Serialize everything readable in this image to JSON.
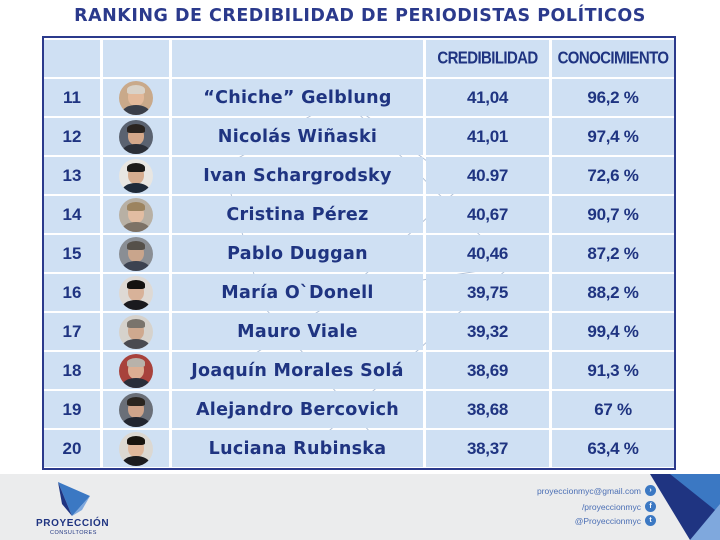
{
  "title": "RANKING DE CREDIBILIDAD DE PERIODISTAS POLÍTICOS",
  "header": {
    "rank": "",
    "photo": "",
    "name": "",
    "credibilidad": "CREDIBILIDAD",
    "conocimiento": "CONOCIMIENTO"
  },
  "rows": [
    {
      "rank": "11",
      "name": "“Chiche” Gelblung",
      "credibilidad": "41,04",
      "conocimiento": "96,2 %"
    },
    {
      "rank": "12",
      "name": "Nicolás Wiñaski",
      "credibilidad": "41,01",
      "conocimiento": "97,4 %"
    },
    {
      "rank": "13",
      "name": "Ivan Schargrodsky",
      "credibilidad": "40.97",
      "conocimiento": "72,6 %"
    },
    {
      "rank": "14",
      "name": "Cristina Pérez",
      "credibilidad": "40,67",
      "conocimiento": "90,7 %"
    },
    {
      "rank": "15",
      "name": "Pablo Duggan",
      "credibilidad": "40,46",
      "conocimiento": "87,2 %"
    },
    {
      "rank": "16",
      "name": "María O`Donell",
      "credibilidad": "39,75",
      "conocimiento": "88,2 %"
    },
    {
      "rank": "17",
      "name": "Mauro Viale",
      "credibilidad": "39,32",
      "conocimiento": "99,4 %"
    },
    {
      "rank": "18",
      "name": "Joaquín Morales Solá",
      "credibilidad": "38,69",
      "conocimiento": "91,3 %"
    },
    {
      "rank": "19",
      "name": "Alejandro Bercovich",
      "credibilidad": "38,68",
      "conocimiento": "67 %"
    },
    {
      "rank": "20",
      "name": "Luciana Rubinska",
      "credibilidad": "38,37",
      "conocimiento": "63,4 %"
    }
  ],
  "footer": {
    "brand": "PROYECCIÓN",
    "brand_sub": "CONSULTORES",
    "email": "proyeccionmyc@gmail.com",
    "facebook": "/proyeccionmyc",
    "twitter": "@Proyeccionmyc"
  },
  "colors": {
    "title": "#2b3a8c",
    "cell_bg": "#cfe0f3",
    "text": "#1f3481"
  }
}
